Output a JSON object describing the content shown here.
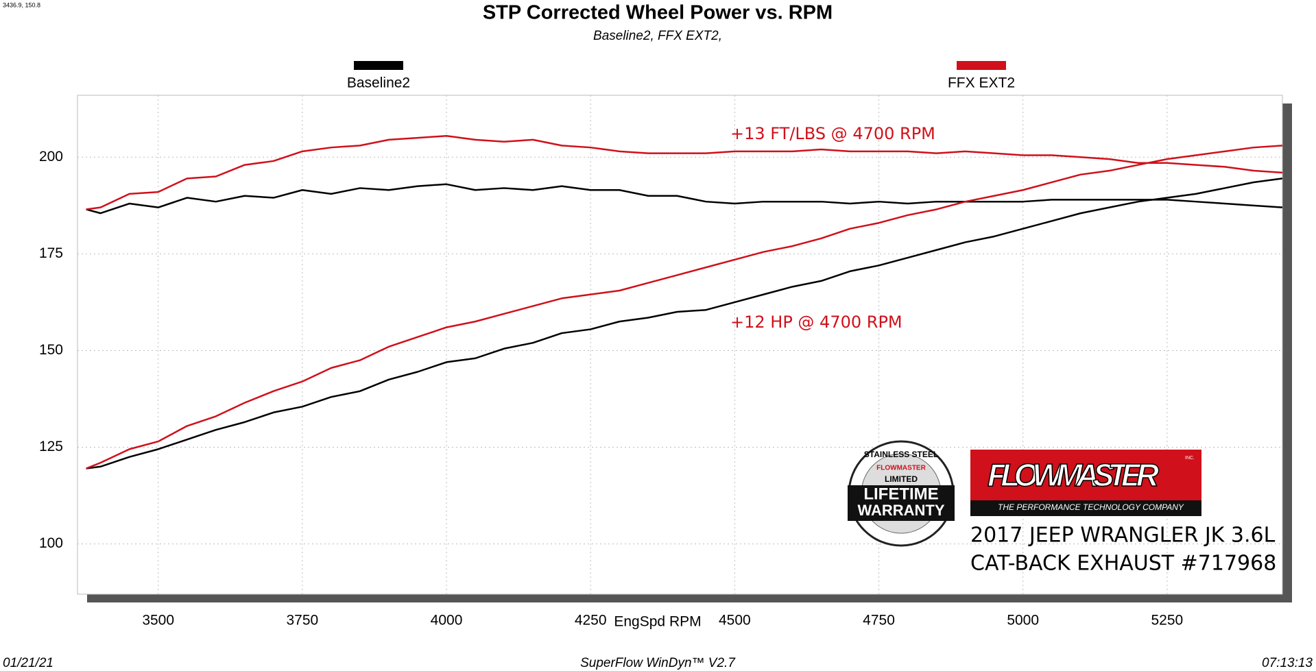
{
  "chart_data": {
    "type": "line",
    "cursor": "3436.9, 150.8",
    "title": "STP Corrected Wheel Power vs. RPM",
    "subtitle": "Baseline2, FFX EXT2,",
    "x_label": "EngSpd  RPM",
    "annotations": [
      "+13 FT/LBS @ 4700 RPM",
      "+12 HP @ 4700 RPM"
    ],
    "footer": {
      "date": "01/21/21",
      "software": "SuperFlow WinDyn™ V2.7",
      "time": "07:13:13"
    },
    "logo": {
      "brand": "FLOWMASTER",
      "inc": "INC.",
      "tagline": "THE PERFORMANCE TECHNOLOGY COMPANY",
      "badge": [
        "STAINLESS STEEL",
        "FLOWMASTER",
        "LIMITED",
        "LIFETIME",
        "WARRANTY"
      ],
      "vehicle": "2017 JEEP WRANGLER JK 3.6L",
      "product": "CAT-BACK EXHAUST #717968"
    },
    "xlim": [
      3360,
      5450
    ],
    "ylim": [
      87,
      216
    ],
    "xticks": [
      3500,
      3750,
      4000,
      4250,
      4500,
      4750,
      5000,
      5250
    ],
    "yticks": [
      100,
      125,
      150,
      175,
      200
    ],
    "grid": true,
    "x": [
      3375,
      3400,
      3450,
      3500,
      3550,
      3600,
      3650,
      3700,
      3750,
      3800,
      3850,
      3900,
      3950,
      4000,
      4050,
      4100,
      4150,
      4200,
      4250,
      4300,
      4350,
      4400,
      4450,
      4500,
      4550,
      4600,
      4650,
      4700,
      4750,
      4800,
      4850,
      4900,
      4950,
      5000,
      5050,
      5100,
      5150,
      5200,
      5250,
      5300,
      5350,
      5400,
      5450
    ],
    "series": [
      {
        "name": "Baseline2",
        "color": "#000000",
        "lines": [
          [
            186.5,
            185.5,
            188,
            187,
            189.5,
            188.5,
            190,
            189.5,
            191.5,
            190.5,
            192,
            191.5,
            192.5,
            193,
            191.5,
            192,
            191.5,
            192.5,
            191.5,
            191.5,
            190,
            190,
            188.5,
            188,
            188.5,
            188.5,
            188.5,
            188,
            188.5,
            188,
            188.5,
            188.5,
            188.5,
            188.5,
            189,
            189,
            189,
            189,
            189,
            188.5,
            188,
            187.5,
            187
          ],
          [
            119.5,
            120,
            122.5,
            124.5,
            127,
            129.5,
            131.5,
            134,
            135.5,
            138,
            139.5,
            142.5,
            144.5,
            147,
            148,
            150.5,
            152,
            154.5,
            155.5,
            157.5,
            158.5,
            160,
            160.5,
            162.5,
            164.5,
            166.5,
            168,
            170.5,
            172,
            174,
            176,
            178,
            179.5,
            181.5,
            183.5,
            185.5,
            187,
            188.5,
            189.5,
            190.5,
            192,
            193.5,
            194.5
          ]
        ]
      },
      {
        "name": "FFX EXT2",
        "color": "#d0101a",
        "lines": [
          [
            186.5,
            187,
            190.5,
            191,
            194.5,
            195,
            198,
            199,
            201.5,
            202.5,
            203,
            204.5,
            205,
            205.5,
            204.5,
            204,
            204.5,
            203,
            202.5,
            201.5,
            201,
            201,
            201,
            201.5,
            201.5,
            201.5,
            202,
            201.5,
            201.5,
            201.5,
            201,
            201.5,
            201,
            200.5,
            200.5,
            200,
            199.5,
            198.5,
            198.5,
            198,
            197.5,
            196.5,
            196
          ],
          [
            119.5,
            121,
            124.5,
            126.5,
            130.5,
            133,
            136.5,
            139.5,
            142,
            145.5,
            147.5,
            151,
            153.5,
            156,
            157.5,
            159.5,
            161.5,
            163.5,
            164.5,
            165.5,
            167.5,
            169.5,
            171.5,
            173.5,
            175.5,
            177,
            179,
            181.5,
            183,
            185,
            186.5,
            188.5,
            190,
            191.5,
            193.5,
            195.5,
            196.5,
            198,
            199.5,
            200.5,
            201.5,
            202.5,
            203
          ]
        ]
      }
    ]
  }
}
